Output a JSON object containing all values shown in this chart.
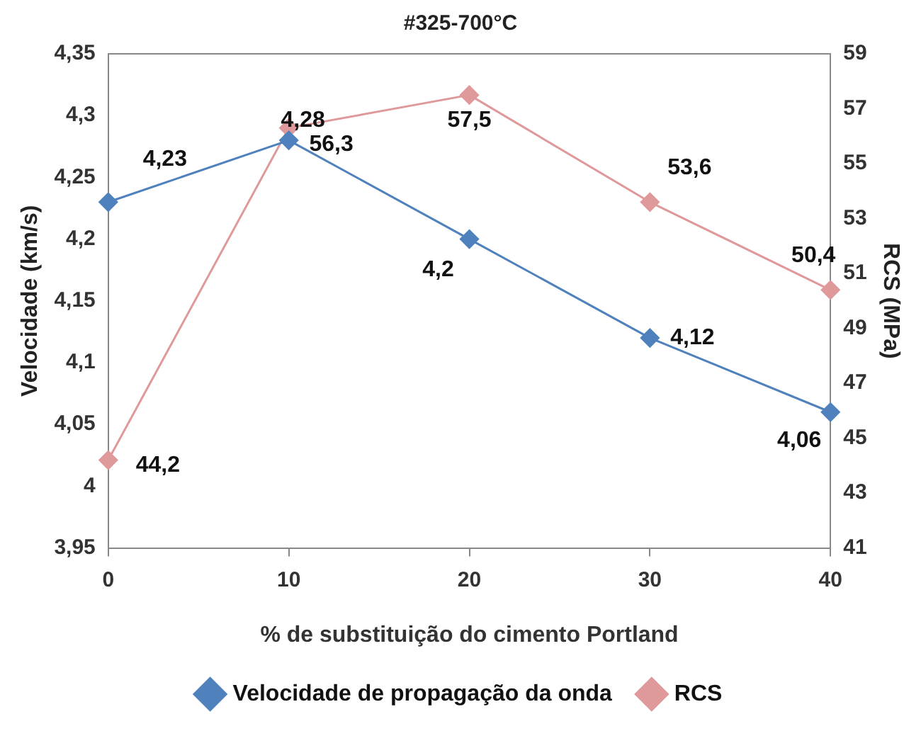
{
  "chart_data": {
    "type": "line",
    "title": "#325-700°C",
    "xlabel": "% de substituição do cimento Portland",
    "ylabel": "Velocidade (km/s)",
    "y2label": "RCS (MPa)",
    "categories": [
      "0",
      "10",
      "20",
      "30",
      "40"
    ],
    "series": [
      {
        "name": "Velocidade de propagação da onda",
        "color": "#4f81bd",
        "values": [
          4.23,
          4.28,
          4.2,
          4.12,
          4.06
        ],
        "value_labels": [
          "4,23",
          "4,28",
          "4,2",
          "4,12",
          "4,06"
        ]
      },
      {
        "name": "RCS",
        "color": "#e0999b",
        "axis": "y2",
        "values": [
          44.2,
          56.3,
          57.5,
          53.6,
          50.4
        ],
        "value_labels": [
          "44,2",
          "56,3",
          "57,5",
          "53,6",
          "50,4"
        ]
      }
    ],
    "ylim": [
      3.95,
      4.35
    ],
    "yticks": [
      {
        "value": 3.95,
        "label": "3,95"
      },
      {
        "value": 4,
        "label": "4"
      },
      {
        "value": 4.05,
        "label": "4,05"
      },
      {
        "value": 4.1,
        "label": "4,1"
      },
      {
        "value": 4.15,
        "label": "4,15"
      },
      {
        "value": 4.2,
        "label": "4,2"
      },
      {
        "value": 4.25,
        "label": "4,25"
      },
      {
        "value": 4.3,
        "label": "4,3"
      },
      {
        "value": 4.35,
        "label": "4,35"
      }
    ],
    "y2lim": [
      41,
      59
    ],
    "y2ticks": [
      41,
      43,
      45,
      47,
      49,
      51,
      53,
      55,
      57,
      59
    ],
    "grid": false,
    "legend": "bottom",
    "marker": "diamond",
    "line_style": "solid"
  }
}
